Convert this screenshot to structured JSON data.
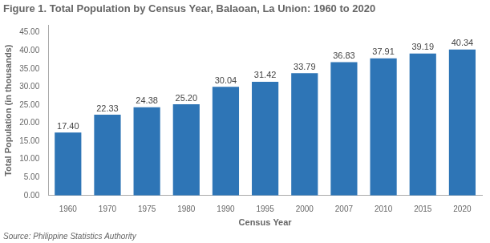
{
  "chart_data": {
    "type": "bar",
    "title": "Figure 1. Total Population by Census Year, Balaoan, La Union: 1960 to 2020",
    "xlabel": "Census Year",
    "ylabel": "Total Population (in thousands)",
    "annotations": [
      "Source: Philippine Statistics Authority"
    ],
    "categories": [
      "1960",
      "1970",
      "1975",
      "1980",
      "1990",
      "1995",
      "2000",
      "2007",
      "2010",
      "2015",
      "2020"
    ],
    "values": [
      17.4,
      22.33,
      24.38,
      25.2,
      30.04,
      31.42,
      33.79,
      36.83,
      37.91,
      39.19,
      40.34
    ],
    "value_labels": [
      "17.40",
      "22.33",
      "24.38",
      "25.20",
      "30.04",
      "31.42",
      "33.79",
      "36.83",
      "37.91",
      "39.19",
      "40.34"
    ],
    "data_labels": true,
    "color": "#2E75B6",
    "ylim": [
      0,
      47
    ],
    "yticks": [
      {
        "value": 0,
        "label": "0.00"
      },
      {
        "value": 5,
        "label": "5.00"
      },
      {
        "value": 10,
        "label": "10.00"
      },
      {
        "value": 15,
        "label": "15.00"
      },
      {
        "value": 20,
        "label": "20.00"
      },
      {
        "value": 25,
        "label": "25.00"
      },
      {
        "value": 30,
        "label": "30.00"
      },
      {
        "value": 35,
        "label": "35.00"
      },
      {
        "value": 40,
        "label": "40.00"
      },
      {
        "value": 45,
        "label": "45.00"
      }
    ],
    "grid": false
  }
}
